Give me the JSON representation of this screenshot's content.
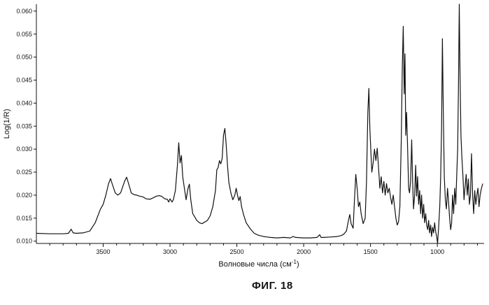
{
  "chart_data": {
    "type": "line",
    "title": "",
    "xlabel_main": "Волновые числа (см",
    "xlabel_sup": "-1",
    "xlabel_end": ")",
    "ylabel": "Log(1/R)",
    "xlim": [
      4000,
      650
    ],
    "ylim": [
      0.0095,
      0.0615
    ],
    "x_reversed": true,
    "grid": false,
    "x_ticks": [
      3500,
      3000,
      2500,
      2000,
      1500,
      1000
    ],
    "y_ticks": [
      0.01,
      0.015,
      0.02,
      0.025,
      0.03,
      0.035,
      0.04,
      0.045,
      0.05,
      0.055,
      0.06
    ],
    "y_tick_labels": [
      "0.010",
      "0.015",
      "0.020",
      "0.025",
      "0.030",
      "0.035",
      "0.040",
      "0.045",
      "0.050",
      "0.055",
      "0.060"
    ],
    "series": [
      {
        "color": "#111111",
        "points": [
          [
            4000,
            0.0117
          ],
          [
            3900,
            0.0116
          ],
          [
            3800,
            0.0116
          ],
          [
            3760,
            0.0117
          ],
          [
            3740,
            0.0126
          ],
          [
            3725,
            0.0118
          ],
          [
            3700,
            0.0117
          ],
          [
            3650,
            0.0118
          ],
          [
            3600,
            0.0122
          ],
          [
            3560,
            0.014
          ],
          [
            3520,
            0.017
          ],
          [
            3500,
            0.018
          ],
          [
            3480,
            0.02
          ],
          [
            3460,
            0.0225
          ],
          [
            3445,
            0.0236
          ],
          [
            3430,
            0.0222
          ],
          [
            3410,
            0.0205
          ],
          [
            3390,
            0.02
          ],
          [
            3370,
            0.0205
          ],
          [
            3340,
            0.023
          ],
          [
            3325,
            0.0239
          ],
          [
            3310,
            0.0225
          ],
          [
            3290,
            0.0205
          ],
          [
            3270,
            0.0201
          ],
          [
            3250,
            0.02
          ],
          [
            3230,
            0.0198
          ],
          [
            3200,
            0.0196
          ],
          [
            3180,
            0.0192
          ],
          [
            3150,
            0.0191
          ],
          [
            3120,
            0.0195
          ],
          [
            3100,
            0.0198
          ],
          [
            3080,
            0.0199
          ],
          [
            3060,
            0.0197
          ],
          [
            3040,
            0.0192
          ],
          [
            3020,
            0.0191
          ],
          [
            3010,
            0.0185
          ],
          [
            3000,
            0.0192
          ],
          [
            2985,
            0.0185
          ],
          [
            2975,
            0.019
          ],
          [
            2960,
            0.021
          ],
          [
            2945,
            0.0265
          ],
          [
            2935,
            0.0314
          ],
          [
            2925,
            0.027
          ],
          [
            2915,
            0.0286
          ],
          [
            2905,
            0.024
          ],
          [
            2895,
            0.022
          ],
          [
            2880,
            0.019
          ],
          [
            2865,
            0.0215
          ],
          [
            2855,
            0.0224
          ],
          [
            2845,
            0.019
          ],
          [
            2830,
            0.016
          ],
          [
            2800,
            0.0145
          ],
          [
            2780,
            0.014
          ],
          [
            2760,
            0.0138
          ],
          [
            2720,
            0.0145
          ],
          [
            2700,
            0.0155
          ],
          [
            2680,
            0.0175
          ],
          [
            2660,
            0.021
          ],
          [
            2650,
            0.0255
          ],
          [
            2640,
            0.026
          ],
          [
            2630,
            0.0275
          ],
          [
            2620,
            0.0268
          ],
          [
            2610,
            0.028
          ],
          [
            2600,
            0.033
          ],
          [
            2590,
            0.0345
          ],
          [
            2580,
            0.031
          ],
          [
            2570,
            0.0265
          ],
          [
            2560,
            0.0228
          ],
          [
            2545,
            0.0205
          ],
          [
            2530,
            0.019
          ],
          [
            2515,
            0.02
          ],
          [
            2505,
            0.0215
          ],
          [
            2495,
            0.02
          ],
          [
            2485,
            0.0188
          ],
          [
            2475,
            0.0197
          ],
          [
            2465,
            0.0175
          ],
          [
            2450,
            0.0158
          ],
          [
            2430,
            0.014
          ],
          [
            2400,
            0.0127
          ],
          [
            2370,
            0.0117
          ],
          [
            2340,
            0.0113
          ],
          [
            2300,
            0.011
          ],
          [
            2250,
            0.0108
          ],
          [
            2200,
            0.0107
          ],
          [
            2150,
            0.0108
          ],
          [
            2100,
            0.0107
          ],
          [
            2080,
            0.011
          ],
          [
            2060,
            0.0108
          ],
          [
            2000,
            0.0107
          ],
          [
            1950,
            0.0107
          ],
          [
            1900,
            0.0108
          ],
          [
            1880,
            0.0114
          ],
          [
            1870,
            0.0108
          ],
          [
            1850,
            0.0108
          ],
          [
            1800,
            0.0109
          ],
          [
            1750,
            0.011
          ],
          [
            1720,
            0.0112
          ],
          [
            1700,
            0.0115
          ],
          [
            1680,
            0.0122
          ],
          [
            1665,
            0.0145
          ],
          [
            1655,
            0.0158
          ],
          [
            1645,
            0.0138
          ],
          [
            1630,
            0.0128
          ],
          [
            1620,
            0.019
          ],
          [
            1610,
            0.0245
          ],
          [
            1600,
            0.0215
          ],
          [
            1590,
            0.0175
          ],
          [
            1580,
            0.0185
          ],
          [
            1570,
            0.016
          ],
          [
            1555,
            0.0138
          ],
          [
            1540,
            0.015
          ],
          [
            1530,
            0.023
          ],
          [
            1520,
            0.038
          ],
          [
            1512,
            0.0432
          ],
          [
            1505,
            0.0345
          ],
          [
            1498,
            0.03
          ],
          [
            1490,
            0.025
          ],
          [
            1480,
            0.027
          ],
          [
            1470,
            0.03
          ],
          [
            1460,
            0.0275
          ],
          [
            1450,
            0.0302
          ],
          [
            1440,
            0.026
          ],
          [
            1430,
            0.0215
          ],
          [
            1420,
            0.024
          ],
          [
            1410,
            0.0205
          ],
          [
            1400,
            0.023
          ],
          [
            1390,
            0.02
          ],
          [
            1380,
            0.0225
          ],
          [
            1370,
            0.0205
          ],
          [
            1360,
            0.0215
          ],
          [
            1350,
            0.0195
          ],
          [
            1340,
            0.018
          ],
          [
            1330,
            0.02
          ],
          [
            1320,
            0.0175
          ],
          [
            1310,
            0.015
          ],
          [
            1300,
            0.0135
          ],
          [
            1290,
            0.0142
          ],
          [
            1280,
            0.0175
          ],
          [
            1270,
            0.032
          ],
          [
            1262,
            0.048
          ],
          [
            1255,
            0.0567
          ],
          [
            1248,
            0.042
          ],
          [
            1242,
            0.0507
          ],
          [
            1236,
            0.033
          ],
          [
            1230,
            0.038
          ],
          [
            1222,
            0.03
          ],
          [
            1215,
            0.0215
          ],
          [
            1208,
            0.0205
          ],
          [
            1200,
            0.023
          ],
          [
            1192,
            0.032
          ],
          [
            1185,
            0.023
          ],
          [
            1178,
            0.017
          ],
          [
            1170,
            0.02
          ],
          [
            1162,
            0.0265
          ],
          [
            1155,
            0.0198
          ],
          [
            1148,
            0.024
          ],
          [
            1140,
            0.018
          ],
          [
            1132,
            0.021
          ],
          [
            1125,
            0.016
          ],
          [
            1118,
            0.02
          ],
          [
            1110,
            0.015
          ],
          [
            1102,
            0.018
          ],
          [
            1095,
            0.014
          ],
          [
            1087,
            0.016
          ],
          [
            1080,
            0.0135
          ],
          [
            1072,
            0.0125
          ],
          [
            1065,
            0.0145
          ],
          [
            1058,
            0.0118
          ],
          [
            1050,
            0.0135
          ],
          [
            1043,
            0.011
          ],
          [
            1035,
            0.013
          ],
          [
            1028,
            0.0118
          ],
          [
            1020,
            0.014
          ],
          [
            1012,
            0.012
          ],
          [
            1005,
            0.011
          ],
          [
            998,
            0.0095
          ],
          [
            990,
            0.013
          ],
          [
            982,
            0.0175
          ],
          [
            975,
            0.024
          ],
          [
            968,
            0.0345
          ],
          [
            962,
            0.054
          ],
          [
            955,
            0.038
          ],
          [
            948,
            0.024
          ],
          [
            940,
            0.019
          ],
          [
            932,
            0.017
          ],
          [
            924,
            0.0215
          ],
          [
            916,
            0.0185
          ],
          [
            908,
            0.015
          ],
          [
            900,
            0.0125
          ],
          [
            893,
            0.014
          ],
          [
            886,
            0.02
          ],
          [
            878,
            0.016
          ],
          [
            870,
            0.0215
          ],
          [
            862,
            0.018
          ],
          [
            855,
            0.024
          ],
          [
            848,
            0.03
          ],
          [
            842,
            0.043
          ],
          [
            836,
            0.0615
          ],
          [
            830,
            0.046
          ],
          [
            823,
            0.033
          ],
          [
            816,
            0.028
          ],
          [
            808,
            0.024
          ],
          [
            800,
            0.019
          ],
          [
            792,
            0.022
          ],
          [
            784,
            0.0245
          ],
          [
            776,
            0.02
          ],
          [
            768,
            0.0235
          ],
          [
            760,
            0.018
          ],
          [
            752,
            0.02
          ],
          [
            744,
            0.029
          ],
          [
            736,
            0.02
          ],
          [
            728,
            0.016
          ],
          [
            720,
            0.021
          ],
          [
            712,
            0.018
          ],
          [
            704,
            0.02
          ],
          [
            696,
            0.0215
          ],
          [
            688,
            0.0175
          ],
          [
            680,
            0.02
          ],
          [
            670,
            0.0215
          ],
          [
            660,
            0.0225
          ]
        ]
      }
    ]
  },
  "figure_caption": "ФИГ. 18"
}
